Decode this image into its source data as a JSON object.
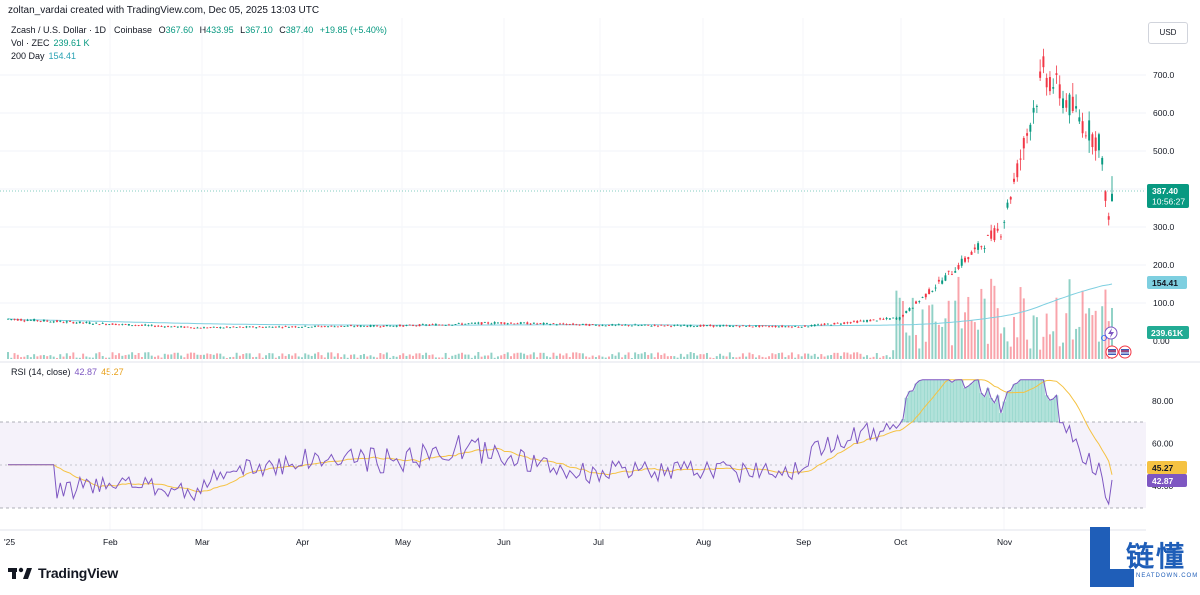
{
  "header": {
    "credit": "zoltan_vardai created with TradingView.com, Dec 05, 2025 13:03 UTC"
  },
  "legend": {
    "symbol": "Zcash / U.S. Dollar · 1D · Coinbase",
    "open_label": "O",
    "open": "367.60",
    "high_label": "H",
    "high": "433.95",
    "low_label": "L",
    "low": "367.10",
    "close_label": "C",
    "close": "387.40",
    "change": "+19.85 (+5.40%)",
    "vol_label": "Vol · ZEC",
    "vol": "239.61 K",
    "ma_label": "200 Day",
    "ma": "154.41",
    "rsi_label": "RSI (14, close)",
    "rsi": "42.87",
    "rsi_ma": "45.27"
  },
  "currency": "USD",
  "badges": {
    "price": "387.40",
    "countdown": "10:56:27",
    "ma": "154.41",
    "vol": "239.61K",
    "rsi_ma": "45.27",
    "rsi": "42.87"
  },
  "footer": {
    "logo": "TradingView"
  },
  "watermark": {
    "cn": "链懂",
    "en": "NEATDOWN.COM"
  },
  "colors": {
    "up": "#089981",
    "down": "#f23645",
    "ma": "#7ecfe0",
    "rsi": "#7e57c2",
    "rsi_ma": "#f5c242",
    "rsi_band": "#7e57c2",
    "brand": "#1f5eb8"
  },
  "chart_data": [
    {
      "type": "candlestick",
      "title": "Zcash / U.S. Dollar · 1D · Coinbase",
      "x_ticks": [
        "'25",
        "Feb",
        "Mar",
        "Apr",
        "May",
        "Jun",
        "Jul",
        "Aug",
        "Sep",
        "Oct",
        "Nov"
      ],
      "y_ticks": [
        "0.00",
        "100.0",
        "200.0",
        "300.0",
        "400.0",
        "500.0",
        "600.0",
        "700.0"
      ],
      "ylim": [
        -10,
        760
      ],
      "monthly_summary": [
        {
          "month": "Jan",
          "open": 58,
          "high": 62,
          "low": 40,
          "close": 45
        },
        {
          "month": "Feb",
          "open": 45,
          "high": 48,
          "low": 30,
          "close": 35
        },
        {
          "month": "Mar",
          "open": 35,
          "high": 40,
          "low": 30,
          "close": 38
        },
        {
          "month": "Apr",
          "open": 38,
          "high": 45,
          "low": 33,
          "close": 40
        },
        {
          "month": "May",
          "open": 40,
          "high": 60,
          "low": 38,
          "close": 48
        },
        {
          "month": "Jun",
          "open": 48,
          "high": 52,
          "low": 36,
          "close": 42
        },
        {
          "month": "Jul",
          "open": 42,
          "high": 48,
          "low": 34,
          "close": 40
        },
        {
          "month": "Aug",
          "open": 40,
          "high": 46,
          "low": 34,
          "close": 38
        },
        {
          "month": "Sep",
          "open": 38,
          "high": 70,
          "low": 34,
          "close": 60
        },
        {
          "month": "Oct",
          "open": 60,
          "high": 300,
          "low": 55,
          "close": 290
        },
        {
          "month": "Nov",
          "open": 290,
          "high": 740,
          "low": 280,
          "close": 530
        },
        {
          "month": "Dec",
          "open": 530,
          "high": 530,
          "low": 300,
          "close": 387.4
        }
      ],
      "last": {
        "open": 367.6,
        "high": 433.95,
        "low": 367.1,
        "close": 387.4
      },
      "ma200_last": 154.41,
      "volume_last": "239.61K"
    },
    {
      "type": "line",
      "title": "RSI (14, close)",
      "y_ticks": [
        "40.00",
        "60.00",
        "80.00"
      ],
      "ylim": [
        26,
        90
      ],
      "bands": [
        30,
        70
      ],
      "series": [
        {
          "name": "RSI",
          "last": 42.87
        },
        {
          "name": "RSI MA",
          "last": 45.27
        }
      ]
    }
  ]
}
